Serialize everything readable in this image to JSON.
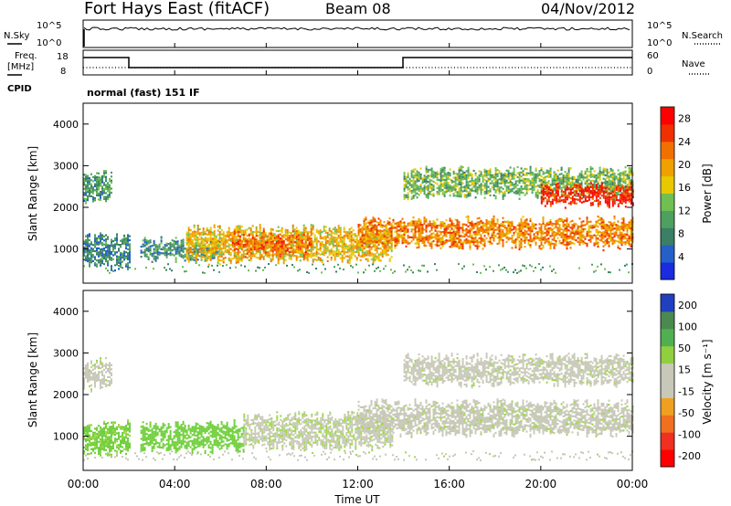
{
  "header": {
    "title": "Fort Hays East (fitACF)",
    "beam": "Beam 08",
    "date": "04/Nov/2012"
  },
  "noise_panel": {
    "left_label": "N.Sky",
    "right_label": "N.Search",
    "left_ticks": [
      "10^5",
      "10^0"
    ],
    "right_ticks": [
      "10^5",
      "10^0"
    ]
  },
  "freq_panel": {
    "left_label_1": "Freq.",
    "left_label_2": "[MHz]",
    "right_label": "Nave",
    "left_ticks": [
      "18",
      "8"
    ],
    "right_ticks": [
      "60",
      "0"
    ],
    "cpid_label": "CPID",
    "cpid_text": "normal (fast) 151 IF"
  },
  "colors": {
    "power_scale": [
      "#1a2be0",
      "#2460c8",
      "#3a7f66",
      "#4ea060",
      "#6fc050",
      "#e8c800",
      "#f0a000",
      "#f07000",
      "#f03000",
      "#ff0000"
    ],
    "velocity_scale": [
      "#2040c0",
      "#4a8a50",
      "#50b050",
      "#90d040",
      "#c8c8b8",
      "#c8c8b8",
      "#f0a020",
      "#f07020",
      "#f03020",
      "#ff0000"
    ]
  },
  "chart_data": [
    {
      "type": "heatmap",
      "title": "Power",
      "ylabel": "Slant Range [km]",
      "xlabel": "Time UT",
      "y_ticks": [
        "1000",
        "2000",
        "3000",
        "4000"
      ],
      "ylim": [
        180,
        4500
      ],
      "colorbar_label": "Power [dB]",
      "colorbar_ticks": [
        "4",
        "8",
        "12",
        "16",
        "20",
        "24",
        "28"
      ],
      "colorbar_range": [
        0,
        30
      ],
      "features": [
        {
          "t_start": 0.0,
          "t_end": 1.2,
          "r_low": 2200,
          "r_high": 2800,
          "level": 9
        },
        {
          "t_start": 0.0,
          "t_end": 2.0,
          "r_low": 600,
          "r_high": 1300,
          "level": 7
        },
        {
          "t_start": 2.5,
          "t_end": 6.0,
          "r_low": 800,
          "r_high": 1200,
          "level": 8
        },
        {
          "t_start": 4.5,
          "t_end": 13.5,
          "r_low": 750,
          "r_high": 1500,
          "level": 18
        },
        {
          "t_start": 6.5,
          "t_end": 10.0,
          "r_low": 900,
          "r_high": 1350,
          "level": 24
        },
        {
          "t_start": 12.0,
          "t_end": 24.0,
          "r_low": 1100,
          "r_high": 1700,
          "level": 22
        },
        {
          "t_start": 14.0,
          "t_end": 24.0,
          "r_low": 2300,
          "r_high": 2900,
          "level": 12
        },
        {
          "t_start": 20.0,
          "t_end": 24.0,
          "r_low": 2100,
          "r_high": 2500,
          "level": 28
        }
      ]
    },
    {
      "type": "heatmap",
      "title": "Velocity",
      "ylabel": "Slant Range [km]",
      "xlabel": "Time UT",
      "y_ticks": [
        "1000",
        "2000",
        "3000",
        "4000"
      ],
      "ylim": [
        180,
        4500
      ],
      "colorbar_label": "Velocity [m s⁻¹]",
      "colorbar_ticks": [
        "200",
        "100",
        "50",
        "15",
        "-15",
        "-50",
        "-100",
        "-200"
      ],
      "features": [
        {
          "t_start": 0.0,
          "t_end": 1.2,
          "r_low": 2200,
          "r_high": 2800,
          "velocity": 0
        },
        {
          "t_start": 0.0,
          "t_end": 2.0,
          "r_low": 600,
          "r_high": 1300,
          "velocity": 40
        },
        {
          "t_start": 2.5,
          "t_end": 7.0,
          "r_low": 700,
          "r_high": 1300,
          "velocity": 45
        },
        {
          "t_start": 7.0,
          "t_end": 13.5,
          "r_low": 750,
          "r_high": 1500,
          "velocity": 5
        },
        {
          "t_start": 12.0,
          "t_end": 24.0,
          "r_low": 1100,
          "r_high": 1800,
          "velocity": 0
        },
        {
          "t_start": 14.0,
          "t_end": 24.0,
          "r_low": 2300,
          "r_high": 2900,
          "velocity": 0
        }
      ]
    }
  ],
  "x_axis": {
    "ticks": [
      "00:00",
      "04:00",
      "08:00",
      "12:00",
      "16:00",
      "20:00",
      "00:00"
    ],
    "label": "Time UT",
    "range_hours": [
      0,
      24
    ]
  }
}
